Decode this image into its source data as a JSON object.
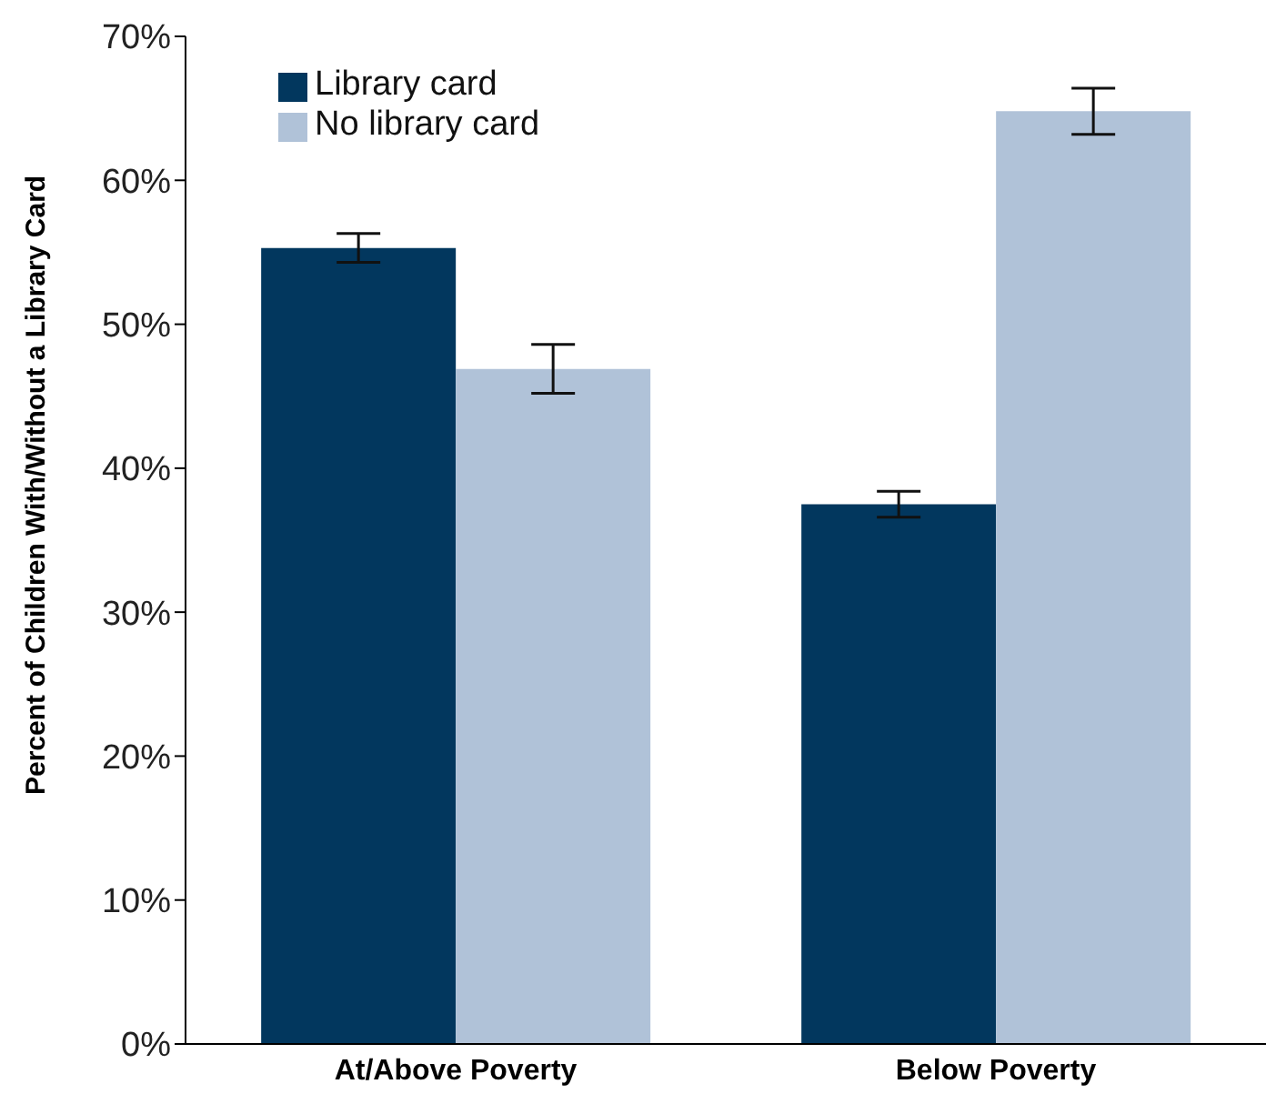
{
  "chart_data": {
    "type": "bar",
    "ylabel": "Percent of Children With/Without a Library Card",
    "categories": [
      "At/Above Poverty",
      "Below Poverty"
    ],
    "series": [
      {
        "name": "Library card",
        "color": "#02375e",
        "values": [
          55.3,
          37.5
        ],
        "errors": [
          1,
          0.9
        ]
      },
      {
        "name": "No library card",
        "color": "#b0c2d8",
        "values": [
          46.9,
          64.8
        ],
        "errors": [
          1.7,
          1.6
        ]
      }
    ],
    "ylim": [
      0,
      70
    ],
    "yticks": [
      {
        "value": 0,
        "label": "0%"
      },
      {
        "value": 10,
        "label": "10%"
      },
      {
        "value": 20,
        "label": "20%"
      },
      {
        "value": 30,
        "label": "30%"
      },
      {
        "value": 40,
        "label": "40%"
      },
      {
        "value": 50,
        "label": "50%"
      },
      {
        "value": 60,
        "label": "60%"
      },
      {
        "value": 70,
        "label": "70%"
      }
    ],
    "grid": false,
    "legend": "top left"
  }
}
